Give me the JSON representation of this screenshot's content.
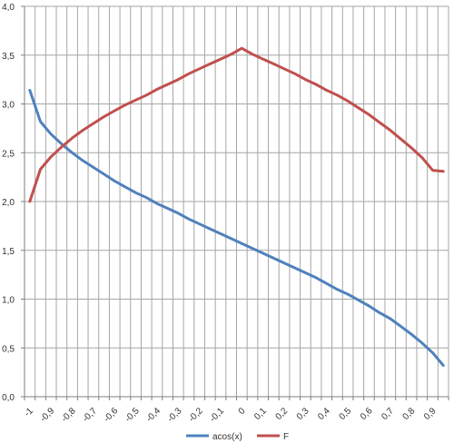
{
  "chart_data": {
    "type": "line",
    "title": "",
    "xlabel": "",
    "ylabel": "",
    "x": [
      -1,
      -0.95,
      -0.9,
      -0.85,
      -0.8,
      -0.75,
      -0.7,
      -0.65,
      -0.6,
      -0.55,
      -0.5,
      -0.45,
      -0.4,
      -0.35,
      -0.3,
      -0.25,
      -0.2,
      -0.15,
      -0.1,
      -0.05,
      0,
      0.05,
      0.1,
      0.15,
      0.2,
      0.25,
      0.3,
      0.35,
      0.4,
      0.45,
      0.5,
      0.55,
      0.6,
      0.65,
      0.7,
      0.75,
      0.8,
      0.85,
      0.9,
      0.95
    ],
    "x_tick_labels": [
      "-1",
      "-0,9",
      "-0,8",
      "-0,7",
      "-0,6",
      "-0,5",
      "-0,4",
      "-0,3",
      "-0,2",
      "-0,1",
      "0",
      "0,1",
      "0,2",
      "0,3",
      "0,4",
      "0,5",
      "0,6",
      "0,7",
      "0,8",
      "0,9"
    ],
    "y_tick_labels": [
      "0,0",
      "0,5",
      "1,0",
      "1,5",
      "2,0",
      "2,5",
      "3,0",
      "3,5",
      "4,0"
    ],
    "ylim": [
      0,
      4
    ],
    "grid": true,
    "legend_position": "bottom",
    "series": [
      {
        "name": "acos(x)",
        "color": "#4f81bd",
        "values": [
          3.14,
          2.82,
          2.69,
          2.59,
          2.5,
          2.42,
          2.35,
          2.28,
          2.21,
          2.15,
          2.09,
          2.04,
          1.98,
          1.93,
          1.88,
          1.82,
          1.77,
          1.72,
          1.67,
          1.62,
          1.57,
          1.52,
          1.47,
          1.42,
          1.37,
          1.32,
          1.27,
          1.22,
          1.16,
          1.1,
          1.05,
          0.99,
          0.93,
          0.86,
          0.8,
          0.72,
          0.64,
          0.55,
          0.45,
          0.32
        ]
      },
      {
        "name": "F",
        "color": "#c0504d",
        "values": [
          2.0,
          2.33,
          2.46,
          2.56,
          2.65,
          2.73,
          2.8,
          2.87,
          2.93,
          2.99,
          3.04,
          3.09,
          3.15,
          3.2,
          3.25,
          3.31,
          3.36,
          3.41,
          3.46,
          3.51,
          3.57,
          3.51,
          3.46,
          3.41,
          3.36,
          3.31,
          3.25,
          3.2,
          3.14,
          3.09,
          3.03,
          2.96,
          2.89,
          2.81,
          2.73,
          2.64,
          2.55,
          2.45,
          2.32,
          2.31
        ]
      }
    ]
  }
}
